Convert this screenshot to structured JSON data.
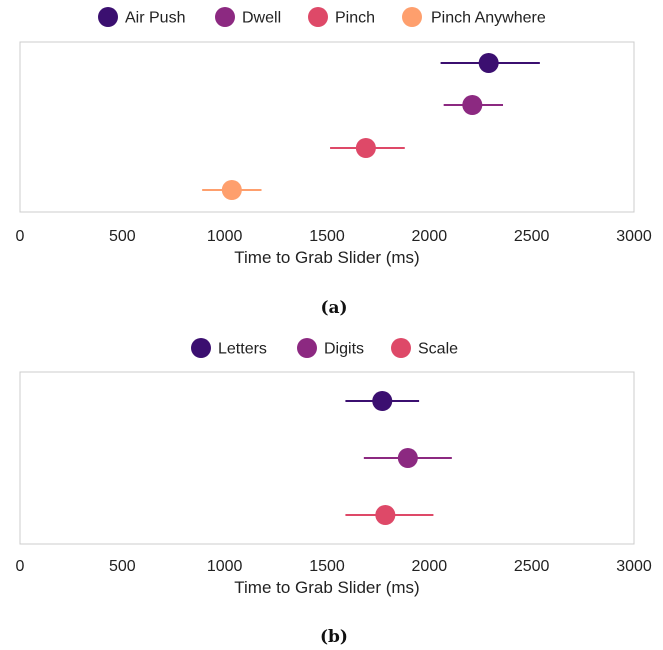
{
  "chart_data": [
    {
      "type": "scatter",
      "caption": "(a)",
      "xlabel": "Time to Grab Slider (ms)",
      "xlim": [
        0,
        3000
      ],
      "xticks": [
        "0",
        "500",
        "1000",
        "1500",
        "2000",
        "2500",
        "3000"
      ],
      "grid": false,
      "legend_position": "top",
      "series": [
        {
          "name": "Air Push",
          "color": "#3b0f70",
          "mean": 2290,
          "ci_low": 2055,
          "ci_high": 2540
        },
        {
          "name": "Dwell",
          "color": "#8c2981",
          "mean": 2210,
          "ci_low": 2070,
          "ci_high": 2360
        },
        {
          "name": "Pinch",
          "color": "#de4968",
          "mean": 1690,
          "ci_low": 1515,
          "ci_high": 1880
        },
        {
          "name": "Pinch Anywhere",
          "color": "#fe9f6d",
          "mean": 1035,
          "ci_low": 890,
          "ci_high": 1180
        }
      ]
    },
    {
      "type": "scatter",
      "caption": "(b)",
      "xlabel": "Time to Grab Slider (ms)",
      "xlim": [
        0,
        3000
      ],
      "xticks": [
        "0",
        "500",
        "1000",
        "1500",
        "2000",
        "2500",
        "3000"
      ],
      "grid": false,
      "legend_position": "top",
      "series": [
        {
          "name": "Letters",
          "color": "#3b0f70",
          "mean": 1770,
          "ci_low": 1590,
          "ci_high": 1950
        },
        {
          "name": "Digits",
          "color": "#8c2981",
          "mean": 1895,
          "ci_low": 1680,
          "ci_high": 2110
        },
        {
          "name": "Scale",
          "color": "#de4968",
          "mean": 1785,
          "ci_low": 1590,
          "ci_high": 2020
        }
      ]
    }
  ]
}
